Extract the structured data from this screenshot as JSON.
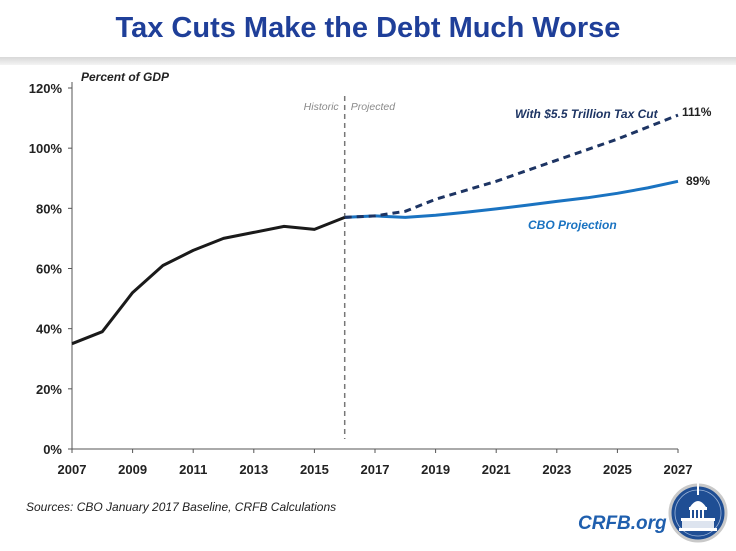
{
  "header": {
    "title": "Tax Cuts Make the Debt Much Worse"
  },
  "chart_data": {
    "type": "line",
    "title": "Tax Cuts Make the Debt Much Worse",
    "ylabel": "Percent of GDP",
    "xlabel": "",
    "xlim": [
      2007,
      2027
    ],
    "ylim": [
      0,
      120
    ],
    "x_ticks": [
      "2007",
      "2009",
      "2011",
      "2013",
      "2015",
      "2017",
      "2019",
      "2021",
      "2023",
      "2025",
      "2027"
    ],
    "y_ticks": [
      "0%",
      "20%",
      "40%",
      "60%",
      "80%",
      "100%",
      "120%"
    ],
    "divider": {
      "x": 2016,
      "left_label": "Historic",
      "right_label": "Projected"
    },
    "series": [
      {
        "name": "Historic",
        "color": "#1a1a1a",
        "style": "solid",
        "x": [
          2007,
          2008,
          2009,
          2010,
          2011,
          2012,
          2013,
          2014,
          2015,
          2016
        ],
        "values": [
          35,
          39,
          52,
          61,
          66,
          70,
          72,
          74,
          73,
          77
        ]
      },
      {
        "name": "CBO Projection",
        "color": "#1a73c1",
        "style": "solid",
        "end_label": "89%",
        "x": [
          2016,
          2017,
          2018,
          2019,
          2020,
          2021,
          2022,
          2023,
          2024,
          2025,
          2026,
          2027
        ],
        "values": [
          77,
          77.5,
          77,
          77.7,
          78.7,
          79.8,
          81,
          82.3,
          83.5,
          85,
          86.8,
          89
        ]
      },
      {
        "name": "With $5.5 Trillion Tax Cut",
        "color": "#1d3463",
        "style": "dashed",
        "end_label": "111%",
        "x": [
          2016,
          2017,
          2018,
          2019,
          2020,
          2021,
          2022,
          2023,
          2024,
          2025,
          2026,
          2027
        ],
        "values": [
          77,
          77.5,
          79,
          83,
          86,
          89,
          92.5,
          96,
          99.5,
          103,
          107,
          111
        ]
      }
    ]
  },
  "footer": {
    "source": "Sources: CBO January 2017 Baseline, CRFB Calculations",
    "brand": "CRFB.org"
  }
}
